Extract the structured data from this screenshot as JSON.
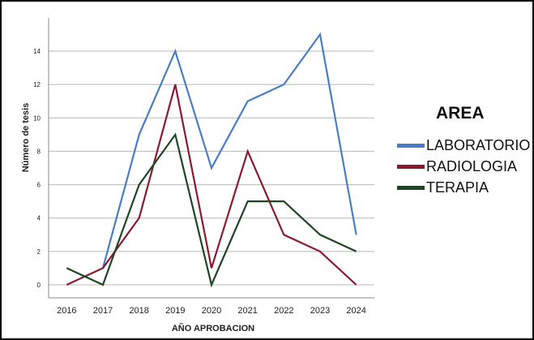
{
  "chart_data": {
    "type": "line",
    "title": "",
    "xlabel": "AÑO APROBACION",
    "ylabel": "Número de tesis",
    "x": [
      "2016",
      "2017",
      "2018",
      "2019",
      "2020",
      "2021",
      "2022",
      "2023",
      "2024"
    ],
    "ylim": [
      0,
      15
    ],
    "yticks": [
      0,
      2,
      4,
      6,
      8,
      10,
      12,
      14
    ],
    "grid": true,
    "legend_title": "AREA",
    "legend_position": "right",
    "series": [
      {
        "name": "LABORATORIO",
        "color": "#4a7dc7",
        "values": [
          null,
          1,
          9,
          14,
          7,
          11,
          12,
          15,
          3
        ]
      },
      {
        "name": "RADIOLOGIA",
        "color": "#8b1a2e",
        "values": [
          0,
          1,
          4,
          12,
          1,
          8,
          3,
          2,
          0
        ]
      },
      {
        "name": "TERAPIA",
        "color": "#1e4620",
        "values": [
          1,
          0,
          6,
          9,
          0,
          5,
          5,
          3,
          2
        ]
      }
    ]
  }
}
